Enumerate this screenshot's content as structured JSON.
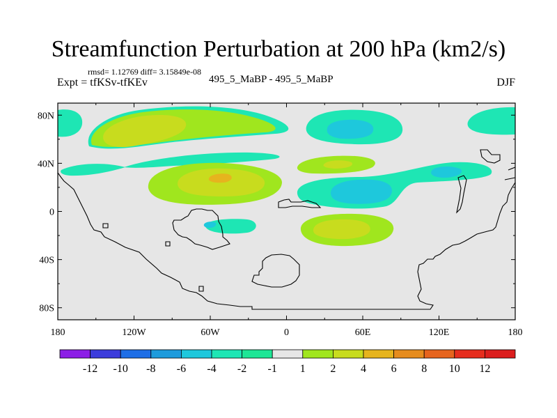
{
  "chart_data": {
    "type": "contour-map",
    "title": "Streamfunction Perturbation at 200 hPa (km2/s)",
    "stats": "rmsd= 1.12769  diff= 3.15849e-08",
    "left_label": "Expt = tfKSv-tfKEv",
    "center_label": "495_5_MaBP - 495_5_MaBP",
    "right_label": "DJF",
    "x_ticks": [
      "180",
      "120W",
      "60W",
      "0",
      "60E",
      "120E",
      "180"
    ],
    "x_tick_values": [
      -180,
      -120,
      -60,
      0,
      60,
      120,
      180
    ],
    "y_ticks": [
      "80N",
      "40N",
      "0",
      "40S",
      "80S"
    ],
    "y_tick_values": [
      80,
      40,
      0,
      -40,
      -80
    ],
    "xlim": [
      -180,
      180
    ],
    "ylim": [
      -90,
      90
    ],
    "colorbar_labels": [
      "-12",
      "-10",
      "-8",
      "-6",
      "-4",
      "-2",
      "-1",
      "1",
      "2",
      "4",
      "6",
      "8",
      "10",
      "12"
    ],
    "colorbar_colors": [
      "#8c1ee6",
      "#3c3cdc",
      "#1e6ee6",
      "#1e9bdc",
      "#1ec8dc",
      "#1ee6b4",
      "#1ee696",
      "#e6e6e6",
      "#a0e61e",
      "#c8dc1e",
      "#e6b41e",
      "#e68c1e",
      "#e6641e",
      "#e62d1e",
      "#dc1e1e"
    ],
    "background_color": "#e6e6e6"
  }
}
